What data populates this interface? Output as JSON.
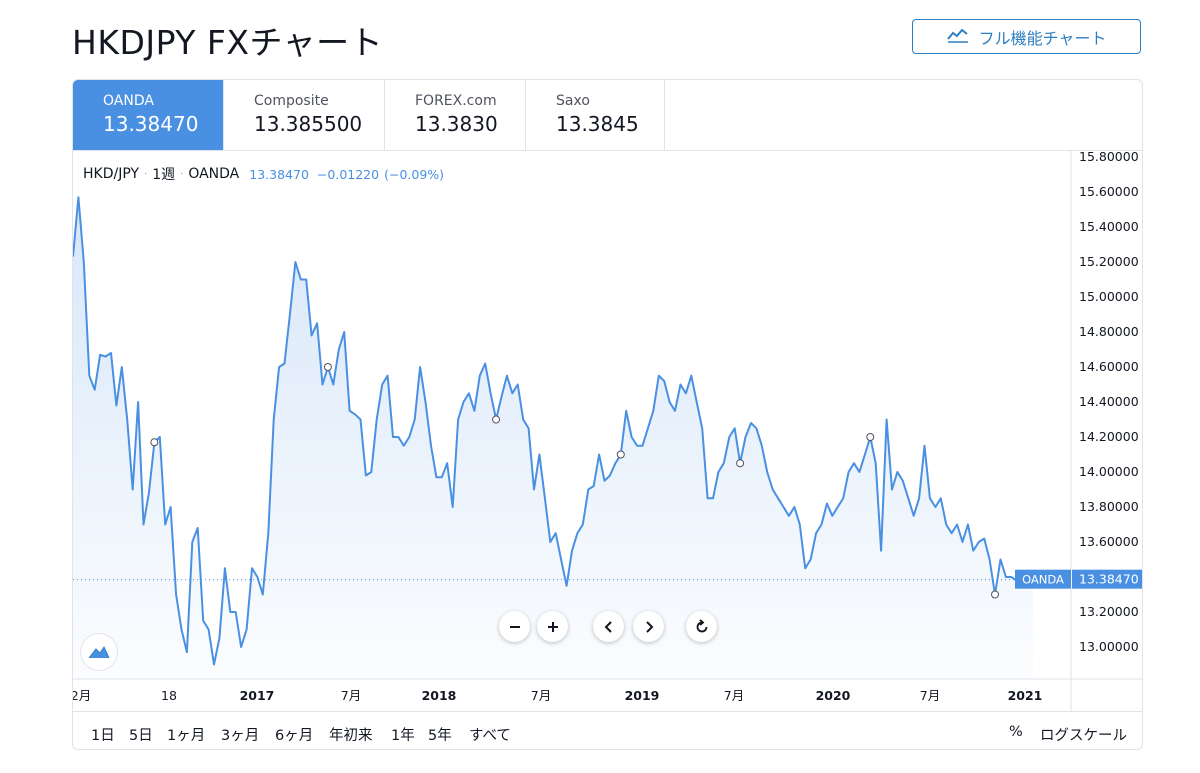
{
  "page": {
    "title": "HKDJPY FXチャート"
  },
  "full_chart_button": {
    "label": "フル機能チャート",
    "icon": "chart-line-icon"
  },
  "tabs": [
    {
      "name": "OANDA",
      "value": "13.38470",
      "active": true
    },
    {
      "name": "Composite",
      "value": "13.385500",
      "active": false
    },
    {
      "name": "FOREX.com",
      "value": "13.3830",
      "active": false
    },
    {
      "name": "Saxo",
      "value": "13.3845",
      "active": false
    }
  ],
  "legend": {
    "symbol": "HKD/JPY",
    "interval": "1週",
    "source": "OANDA",
    "price": "13.38470",
    "change": "−0.01220",
    "change_pct": "(−0.09%)"
  },
  "price_label": {
    "name": "OANDA",
    "value": "13.38470"
  },
  "chart_data": {
    "type": "area",
    "series": [
      {
        "name": "OANDA",
        "values": [
          15.23,
          15.57,
          15.2,
          14.55,
          14.47,
          14.67,
          14.66,
          14.68,
          14.38,
          14.6,
          14.3,
          13.9,
          14.4,
          13.7,
          13.88,
          14.17,
          14.2,
          13.7,
          13.8,
          13.3,
          13.1,
          12.97,
          13.6,
          13.68,
          13.15,
          13.1,
          12.9,
          13.05,
          13.45,
          13.2,
          13.2,
          13.0,
          13.1,
          13.45,
          13.4,
          13.3,
          13.65,
          14.3,
          14.6,
          14.62,
          14.9,
          15.2,
          15.1,
          15.1,
          14.78,
          14.85,
          14.5,
          14.6,
          14.5,
          14.7,
          14.8,
          14.35,
          14.33,
          14.3,
          13.98,
          14.0,
          14.3,
          14.5,
          14.55,
          14.2,
          14.2,
          14.15,
          14.2,
          14.3,
          14.6,
          14.4,
          14.15,
          13.97,
          13.97,
          14.05,
          13.8,
          14.3,
          14.4,
          14.45,
          14.35,
          14.55,
          14.62,
          14.45,
          14.3,
          14.43,
          14.55,
          14.45,
          14.5,
          14.3,
          14.25,
          13.9,
          14.1,
          13.85,
          13.6,
          13.65,
          13.5,
          13.35,
          13.55,
          13.65,
          13.7,
          13.9,
          13.92,
          14.1,
          13.95,
          13.98,
          14.05,
          14.1,
          14.35,
          14.2,
          14.15,
          14.15,
          14.25,
          14.35,
          14.55,
          14.52,
          14.4,
          14.35,
          14.5,
          14.45,
          14.55,
          14.4,
          14.25,
          13.85,
          13.85,
          14.0,
          14.05,
          14.2,
          14.25,
          14.05,
          14.2,
          14.28,
          14.25,
          14.15,
          14.0,
          13.9,
          13.85,
          13.8,
          13.75,
          13.8,
          13.7,
          13.45,
          13.5,
          13.65,
          13.7,
          13.82,
          13.75,
          13.8,
          13.85,
          14.0,
          14.05,
          14.0,
          14.1,
          14.2,
          14.05,
          13.55,
          14.3,
          13.9,
          14.0,
          13.95,
          13.85,
          13.75,
          13.85,
          14.15,
          13.85,
          13.8,
          13.85,
          13.7,
          13.65,
          13.7,
          13.6,
          13.7,
          13.55,
          13.6,
          13.62,
          13.5,
          13.3,
          13.5,
          13.4,
          13.4,
          13.38,
          13.4,
          13.39,
          13.38
        ]
      }
    ],
    "x_tick_labels": [
      "2月",
      "18",
      "2017",
      "7月",
      "2018",
      "7月",
      "2019",
      "7月",
      "2020",
      "7月",
      "2021"
    ],
    "y_tick_labels": [
      "15.80000",
      "15.60000",
      "15.40000",
      "15.20000",
      "15.00000",
      "14.80000",
      "14.60000",
      "14.40000",
      "14.20000",
      "14.00000",
      "13.80000",
      "13.60000",
      "13.40000",
      "13.20000",
      "13.00000"
    ],
    "ylim": [
      12.84,
      15.84
    ],
    "last_value": 13.3847,
    "line_color": "#4a90e2",
    "fill_color": "#4a90e2",
    "grid": false
  },
  "controls": [
    "zoom-out-icon",
    "zoom-in-icon",
    "scroll-left-icon",
    "scroll-right-icon",
    "reset-icon"
  ],
  "ranges": [
    "1日",
    "5日",
    "1ヶ月",
    "3ヶ月",
    "6ヶ月",
    "年初来",
    "1年",
    "5年",
    "すべて"
  ],
  "scale_options": {
    "percent": "%",
    "log": "ログスケール"
  }
}
